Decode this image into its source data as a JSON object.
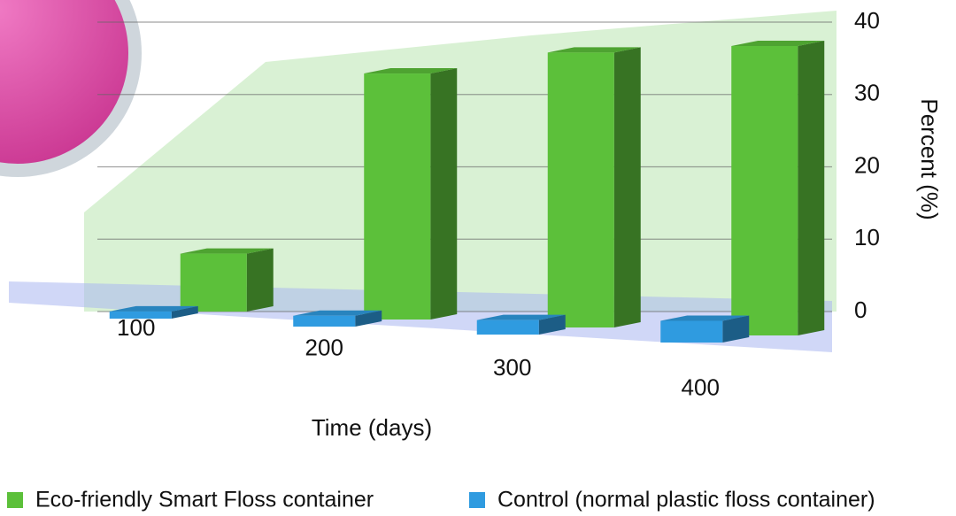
{
  "chart_data": {
    "type": "bar3d",
    "x_label": "Time (days)",
    "y_label": "Percent (%)",
    "categories": [
      "100",
      "200",
      "300",
      "400"
    ],
    "series": [
      {
        "name": "Eco-friendly Smart Floss container",
        "color": "#5cc03a",
        "values": [
          8,
          34,
          38,
          40
        ]
      },
      {
        "name": "Control (normal plastic floss container)",
        "color": "#2f9be0",
        "values": [
          1,
          1.5,
          2,
          3
        ]
      }
    ],
    "ylim": [
      0,
      40
    ],
    "yticks": [
      0,
      10,
      20,
      30,
      40
    ],
    "grid": true
  }
}
